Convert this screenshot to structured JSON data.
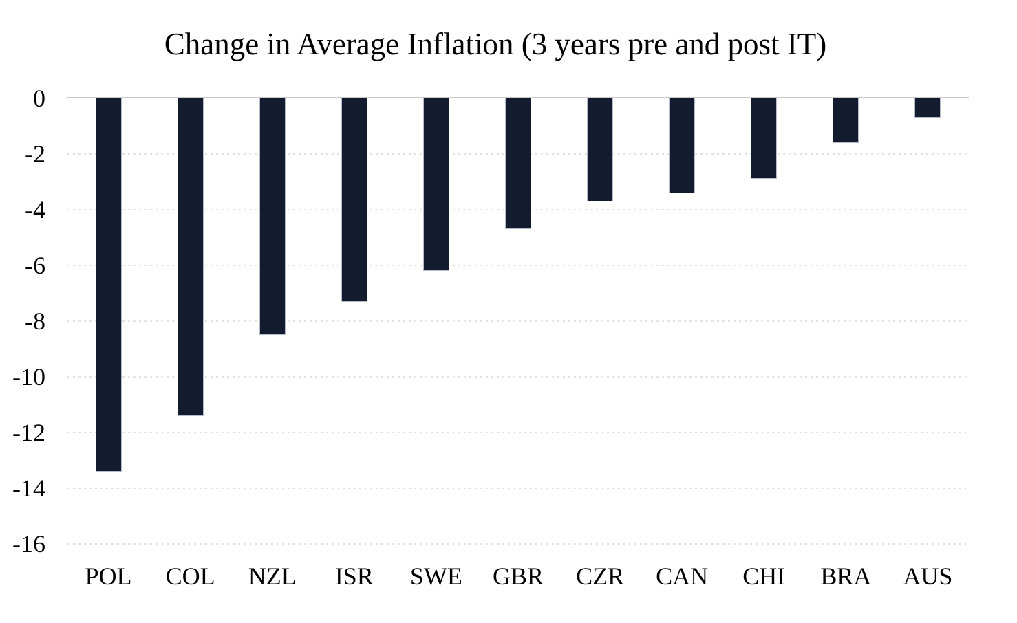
{
  "chart_data": {
    "type": "bar",
    "title": "Change in Average Inflation (3 years pre and post IT)",
    "categories": [
      "POL",
      "COL",
      "NZL",
      "ISR",
      "SWE",
      "GBR",
      "CZR",
      "CAN",
      "CHI",
      "BRA",
      "AUS"
    ],
    "values": [
      -13.4,
      -11.4,
      -8.5,
      -7.3,
      -6.2,
      -4.7,
      -3.7,
      -3.4,
      -2.9,
      -1.6,
      -0.7
    ],
    "xlabel": "",
    "ylabel": "",
    "ylim": [
      -16,
      0
    ],
    "yticks": [
      0,
      -2,
      -4,
      -6,
      -8,
      -10,
      -12,
      -14,
      -16
    ],
    "grid": "horizontal-dotted",
    "legend": "none",
    "colors": {
      "bar": "#131b2e",
      "zero_line": "#c9c9c9",
      "gridline": "#e2e2e2",
      "text": "#000000",
      "background": "#ffffff"
    }
  }
}
